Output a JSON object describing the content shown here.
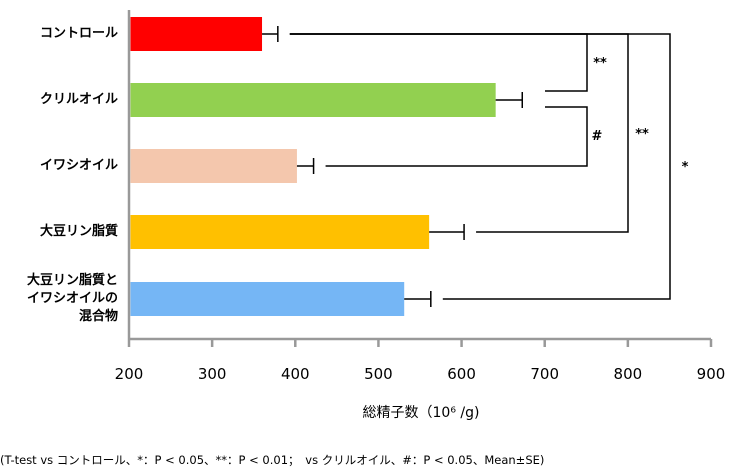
{
  "chart_data": {
    "type": "bar",
    "orientation": "horizontal",
    "categories": [
      "コントロール",
      "クリルオイル",
      "イワシオイル",
      "大豆リン脂質",
      "大豆リン脂質と\nイワシオイルの\n混合物"
    ],
    "values": [
      360,
      641,
      402,
      561,
      531
    ],
    "errors": [
      19,
      32,
      20,
      42,
      32
    ],
    "colors": [
      "#ff0000",
      "#92d050",
      "#f4c7ad",
      "#ffc000",
      "#75b6f5"
    ],
    "xlabel": "総精子数（10⁶ /g)",
    "xlim": [
      200,
      900
    ],
    "xticks": [
      "200",
      "300",
      "400",
      "500",
      "600",
      "700",
      "800",
      "900"
    ],
    "grid": false,
    "significance": [
      {
        "from": 1,
        "to": 0,
        "label": "**"
      },
      {
        "from": 2,
        "to": 1,
        "label": "#"
      },
      {
        "from": 3,
        "to": 0,
        "label": "**"
      },
      {
        "from": 4,
        "to": 0,
        "label": "*"
      }
    ]
  },
  "footnote": "(T-test vs コントロール、*：P < 0.05、**：P < 0.01；　vs クリルオイル、#：P < 0.05、Mean±SE)"
}
